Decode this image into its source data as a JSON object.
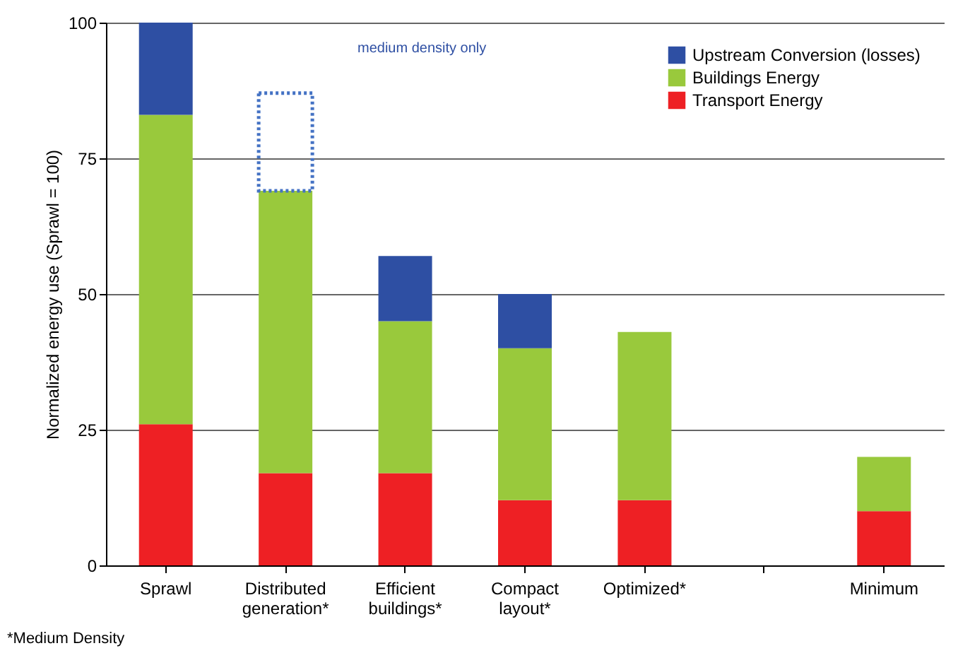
{
  "chart_data": {
    "type": "bar",
    "stacked": true,
    "ylabel": "Normalized energy use (Sprawl = 100)",
    "categories": [
      "Sprawl",
      "Distributed generation*",
      "Efficient buildings*",
      "Compact layout*",
      "Optimized*",
      null,
      "Minimum"
    ],
    "series": [
      {
        "name": "Transport Energy",
        "color": "#ee2024",
        "values": [
          26,
          17,
          17,
          12,
          12,
          null,
          10
        ]
      },
      {
        "name": "Buildings Energy",
        "color": "#99c93c",
        "values": [
          57,
          52,
          28,
          28,
          31,
          null,
          10
        ]
      },
      {
        "name": "Upstream Conversion (losses)",
        "color": "#2e4fa3",
        "values": [
          17,
          null,
          12,
          10,
          null,
          null,
          null
        ]
      },
      {
        "color": "#4472c4",
        "line_style": "dotted",
        "values": [
          null,
          18,
          null,
          null,
          null,
          null,
          null
        ]
      }
    ],
    "ylim": [
      0,
      100
    ],
    "yticks": [
      0,
      25,
      50,
      75,
      100
    ],
    "grid": "y",
    "legend": "top right",
    "annotations": [
      "medium density only",
      "*Medium Density"
    ]
  }
}
